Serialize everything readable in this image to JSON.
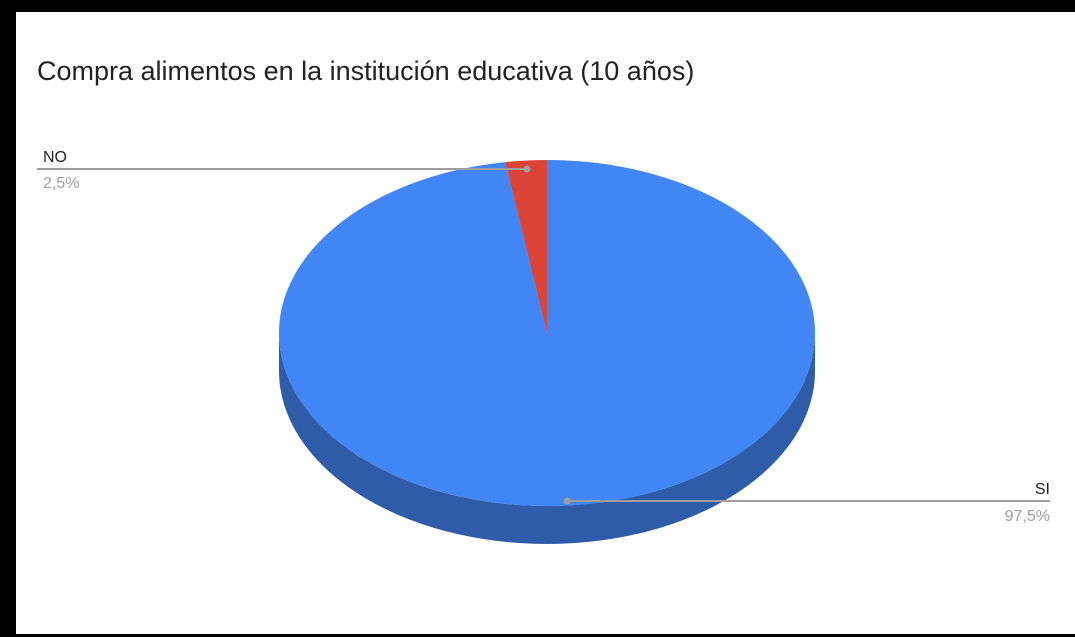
{
  "chart_data": {
    "type": "pie",
    "style": "3d",
    "title": "Compra alimentos en la institución educativa (10 años)",
    "slices": [
      {
        "label": "SI",
        "value": 97.5,
        "display": "97,5%",
        "color": "#4285f4",
        "side_color": "#2f5ca8"
      },
      {
        "label": "NO",
        "value": 2.5,
        "display": "2,5%",
        "color": "#db4437",
        "side_color": "#9e3128"
      }
    ],
    "legend": "none",
    "label_color": "#222222",
    "percent_color": "#9e9e9e",
    "leader_color": "#9e9e9e"
  }
}
